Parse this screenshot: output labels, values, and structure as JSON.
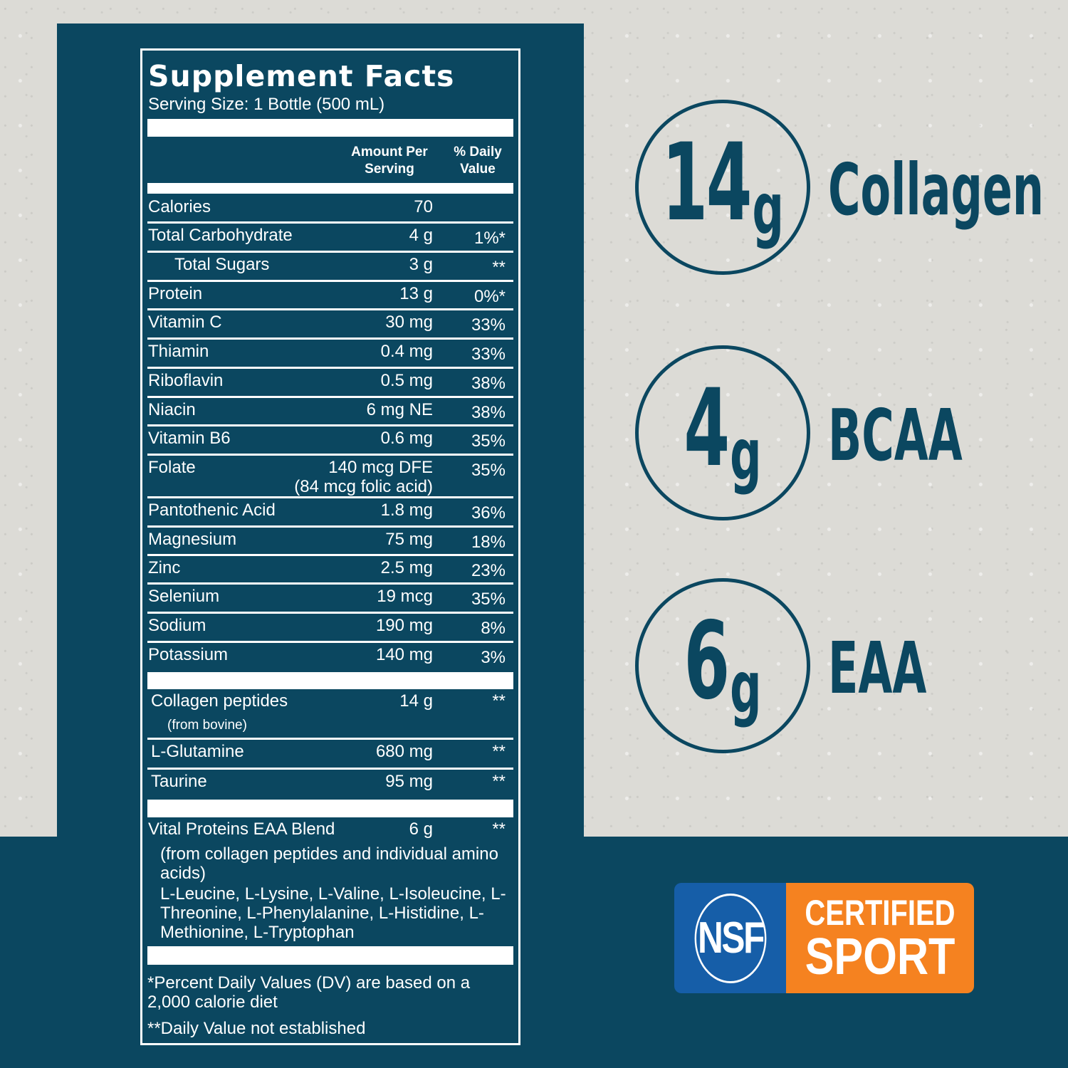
{
  "label": {
    "title": "Supplement Facts",
    "serving": "Serving Size: 1 Bottle (500 mL)",
    "col_amount": "Amount Per Serving",
    "col_dv": "% Daily Value",
    "nutrients": [
      {
        "name": "Calories",
        "amount": "70",
        "dv": ""
      },
      {
        "name": "Total Carbohydrate",
        "amount": "4 g",
        "dv": "1%*"
      },
      {
        "name": "Total Sugars",
        "amount": "3 g",
        "dv": "**"
      },
      {
        "name": "Protein",
        "amount": "13 g",
        "dv": "0%*"
      },
      {
        "name": "Vitamin C",
        "amount": "30 mg",
        "dv": "33%"
      },
      {
        "name": "Thiamin",
        "amount": "0.4 mg",
        "dv": "33%"
      },
      {
        "name": "Riboflavin",
        "amount": "0.5 mg",
        "dv": "38%"
      },
      {
        "name": "Niacin",
        "amount": "6 mg NE",
        "dv": "38%"
      },
      {
        "name": "Vitamin B6",
        "amount": "0.6 mg",
        "dv": "35%"
      },
      {
        "name": "Folate",
        "amount": "140 mcg DFE",
        "amount2": "(84 mcg folic acid)",
        "dv": "35%"
      },
      {
        "name": "Pantothenic Acid",
        "amount": "1.8 mg",
        "dv": "36%"
      },
      {
        "name": "Magnesium",
        "amount": "75 mg",
        "dv": "18%"
      },
      {
        "name": "Zinc",
        "amount": "2.5 mg",
        "dv": "23%"
      },
      {
        "name": "Selenium",
        "amount": "19 mcg",
        "dv": "35%"
      },
      {
        "name": "Sodium",
        "amount": "190 mg",
        "dv": "8%"
      },
      {
        "name": "Potassium",
        "amount": "140 mg",
        "dv": "3%"
      }
    ],
    "others": [
      {
        "name": "Collagen peptides",
        "sub": "(from bovine)",
        "amount": "14 g",
        "dv": "**"
      },
      {
        "name": "L-Glutamine",
        "amount": "680 mg",
        "dv": "**"
      },
      {
        "name": "Taurine",
        "amount": "95 mg",
        "dv": "**"
      }
    ],
    "blend": {
      "name": "Vital Proteins EAA Blend",
      "amount": "6 g",
      "dv": "**",
      "desc": "(from collagen peptides and individual amino acids)",
      "ingredients": "L-Leucine, L-Lysine, L-Valine, L-Isoleucine, L-Threonine, L-Phenylalanine, L-Histidine, L-Methionine, L-Tryptophan"
    },
    "footnote1": "*Percent Daily Values (DV) are based on a 2,000 calorie diet",
    "footnote2": "**Daily Value not established"
  },
  "highlights": [
    {
      "num": "14",
      "unit": "g",
      "word": "Collagen"
    },
    {
      "num": "4",
      "unit": "g",
      "word": "BCAA"
    },
    {
      "num": "6",
      "unit": "g",
      "word": "EAA"
    }
  ],
  "badge": {
    "logo": "NSF",
    "line1": "CERTIFIED",
    "line2": "SPORT"
  },
  "colors": {
    "teal": "#0b4760",
    "nsf_blue": "#165ea8",
    "nsf_orange": "#f58220"
  }
}
